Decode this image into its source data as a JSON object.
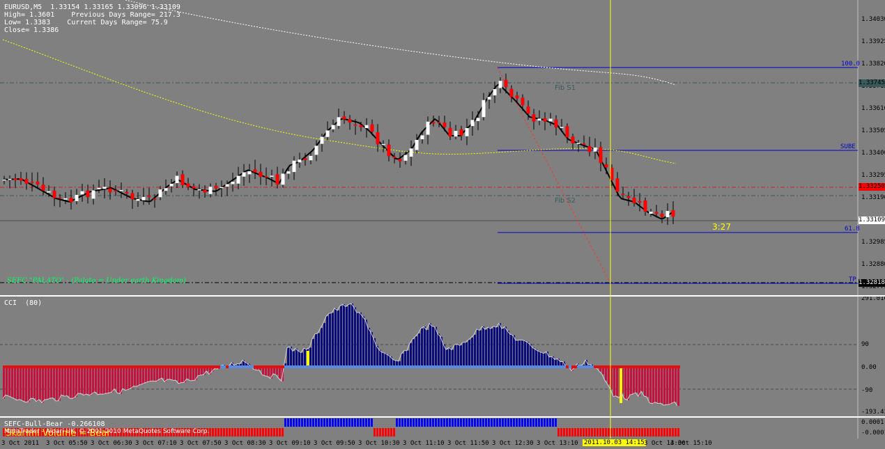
{
  "info": {
    "line1": "EURUSD,M5  1.33154 1.33165 1.33096 1.33109",
    "line2": "High= 1.3601    Previous Days Range= 217.3",
    "line3": "Low= 1.3383    Current Days Range= 75.9",
    "line4": "Close= 1.3386"
  },
  "main_chart": {
    "y_labels": [
      "1.34030",
      "1.33925",
      "1.33820",
      "1.33715",
      "1.33610",
      "1.33505",
      "1.33400",
      "1.33295",
      "1.33190",
      "1.33085",
      "1.32985",
      "1.32880",
      "1.32775"
    ],
    "current_price_box": "1.33109",
    "red_line_box": "1.33250",
    "fib_s1_box": "1.33745",
    "tp_box": "1.32818",
    "fib_labels": {
      "level_100": "100.0",
      "sube": "SUBE",
      "level_618": "61.8",
      "tp": "TP"
    },
    "fib_s1": "Fib S1",
    "fib_s2": "Fib S2",
    "timer": "3:27",
    "watermark": "SEFC \"PALATO\" - (Palato = Under earth Kingdom)"
  },
  "cci": {
    "title": "CCI  (80)",
    "y_labels": [
      "291.016",
      "90",
      "0.00",
      "-90",
      "-193.431"
    ]
  },
  "bull_bear": {
    "title": "SEFC-Bull-Bear -0.266108",
    "y_labels": [
      "0.0001",
      "-0.0001"
    ],
    "overlay_text": "Skarlmi Volume = Bear"
  },
  "footer": {
    "copyright": "MetaTrader - Alpari UK, © 2001-2010 MetaQuotes Software Corp."
  },
  "x_axis": {
    "labels": [
      "3 Oct 2011",
      "3 Oct 05:50",
      "3 Oct 06:30",
      "3 Oct 07:10",
      "3 Oct 07:50",
      "3 Oct 08:30",
      "3 Oct 09:10",
      "3 Oct 09:50",
      "3 Oct 10:30",
      "3 Oct 11:10",
      "3 Oct 11:50",
      "3 Oct 12:30",
      "3 Oct 13:10",
      "2011.10.03 14:15",
      "3 Oct 14:30",
      "3 Oct 15:10"
    ],
    "crosshair_label": "2011.10.03 14:15"
  },
  "colors": {
    "background": "#808080",
    "bull_candle": "#ffffff",
    "bear_candle": "#ff0000",
    "ma_line": "#000000",
    "slow_ma": "#ffff00",
    "white_ma": "#ffffff",
    "fib_lines": "#0000cc",
    "crosshair": "#ffff00",
    "cci_up": "#0a0a80",
    "cci_down": "#c8103e",
    "bull_bar": "#0000ff",
    "bear_bar": "#ff0000"
  }
}
